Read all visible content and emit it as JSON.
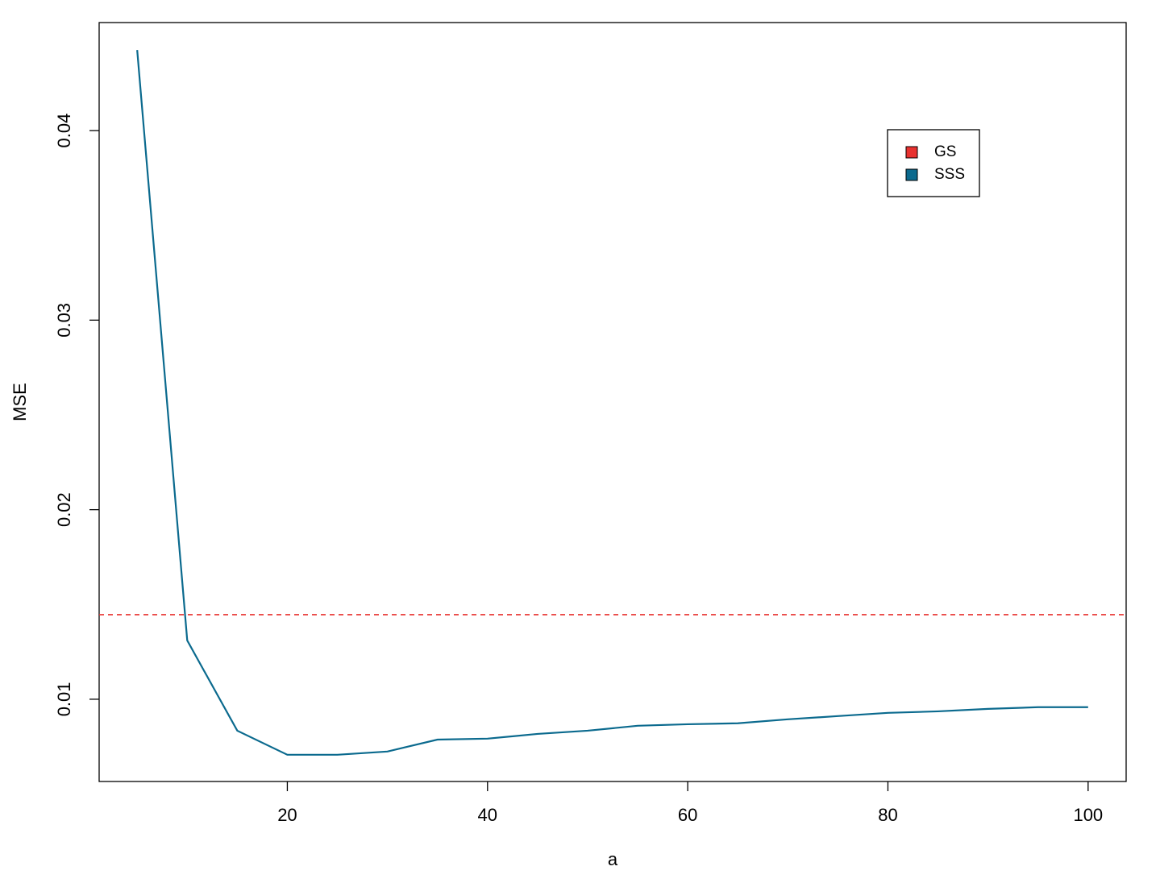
{
  "chart_data": {
    "type": "line",
    "x_label": "a",
    "y_label": "MSE",
    "x": [
      5,
      10,
      15,
      20,
      25,
      30,
      35,
      40,
      45,
      50,
      55,
      60,
      65,
      70,
      75,
      80,
      85,
      90,
      95,
      100
    ],
    "series": [
      {
        "name": "SSS",
        "color": "#0b6a8e",
        "values": [
          0.04425,
          0.0131,
          0.00834,
          0.00707,
          0.00707,
          0.00724,
          0.00787,
          0.00792,
          0.00817,
          0.00834,
          0.0086,
          0.00868,
          0.00873,
          0.00894,
          0.00911,
          0.00928,
          0.00936,
          0.00949,
          0.00958,
          0.00958
        ]
      }
    ],
    "hline": {
      "name": "GS",
      "value": 0.01446,
      "color": "#e8312f",
      "dashed": true
    },
    "xlim": [
      1.2,
      103.8
    ],
    "ylim": [
      0.00566,
      0.0457
    ],
    "xticks": [
      20,
      40,
      60,
      80,
      100
    ],
    "yticks": [
      0.01,
      0.02,
      0.03,
      0.04
    ]
  }
}
